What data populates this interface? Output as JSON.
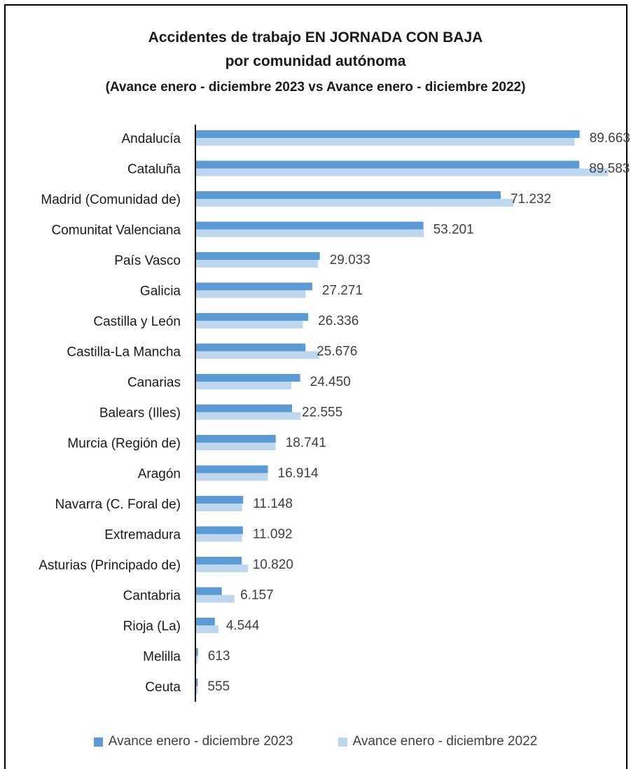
{
  "colors": {
    "series_2023": "#5b9bd5",
    "series_2022": "#bdd7ee",
    "axis": "#000000"
  },
  "chart_data": {
    "type": "bar",
    "orientation": "horizontal",
    "title": "Accidentes de trabajo EN JORNADA CON BAJA",
    "subtitle": "por comunidad autónoma",
    "subtitle2": "(Avance enero - diciembre 2023 vs Avance enero - diciembre 2022)",
    "categories": [
      "Andalucía",
      "Cataluña",
      "Madrid (Comunidad de)",
      "Comunitat Valenciana",
      "País Vasco",
      "Galicia",
      "Castilla y León",
      "Castilla-La Mancha",
      "Canarias",
      "Balears (Illes)",
      "Murcia (Región de)",
      "Aragón",
      "Navarra (C. Foral de)",
      "Extremadura",
      "Asturias (Principado de)",
      "Cantabria",
      "Rioja (La)",
      "Melilla",
      "Ceuta"
    ],
    "value_labels": [
      "89.663",
      "89.583",
      "71.232",
      "53.201",
      "29.033",
      "27.271",
      "26.336",
      "25.676",
      "24.450",
      "22.555",
      "18.741",
      "16.914",
      "11.148",
      "11.092",
      "10.820",
      "6.157",
      "4.544",
      "613",
      "555"
    ],
    "series": [
      {
        "name": "Avance enero - diciembre 2023",
        "values": [
          89663,
          89583,
          71232,
          53201,
          29033,
          27271,
          26336,
          25676,
          24450,
          22555,
          18741,
          16914,
          11148,
          11092,
          10820,
          6157,
          4544,
          613,
          555
        ]
      },
      {
        "name": "Avance enero - diciembre 2022",
        "values": [
          88500,
          96300,
          74200,
          53300,
          28600,
          25700,
          25100,
          28900,
          22400,
          24600,
          18700,
          16900,
          10900,
          10900,
          12300,
          9100,
          5400,
          600,
          560
        ]
      }
    ],
    "xlim": [
      0,
      100000
    ],
    "grid": false,
    "legend_position": "bottom"
  }
}
